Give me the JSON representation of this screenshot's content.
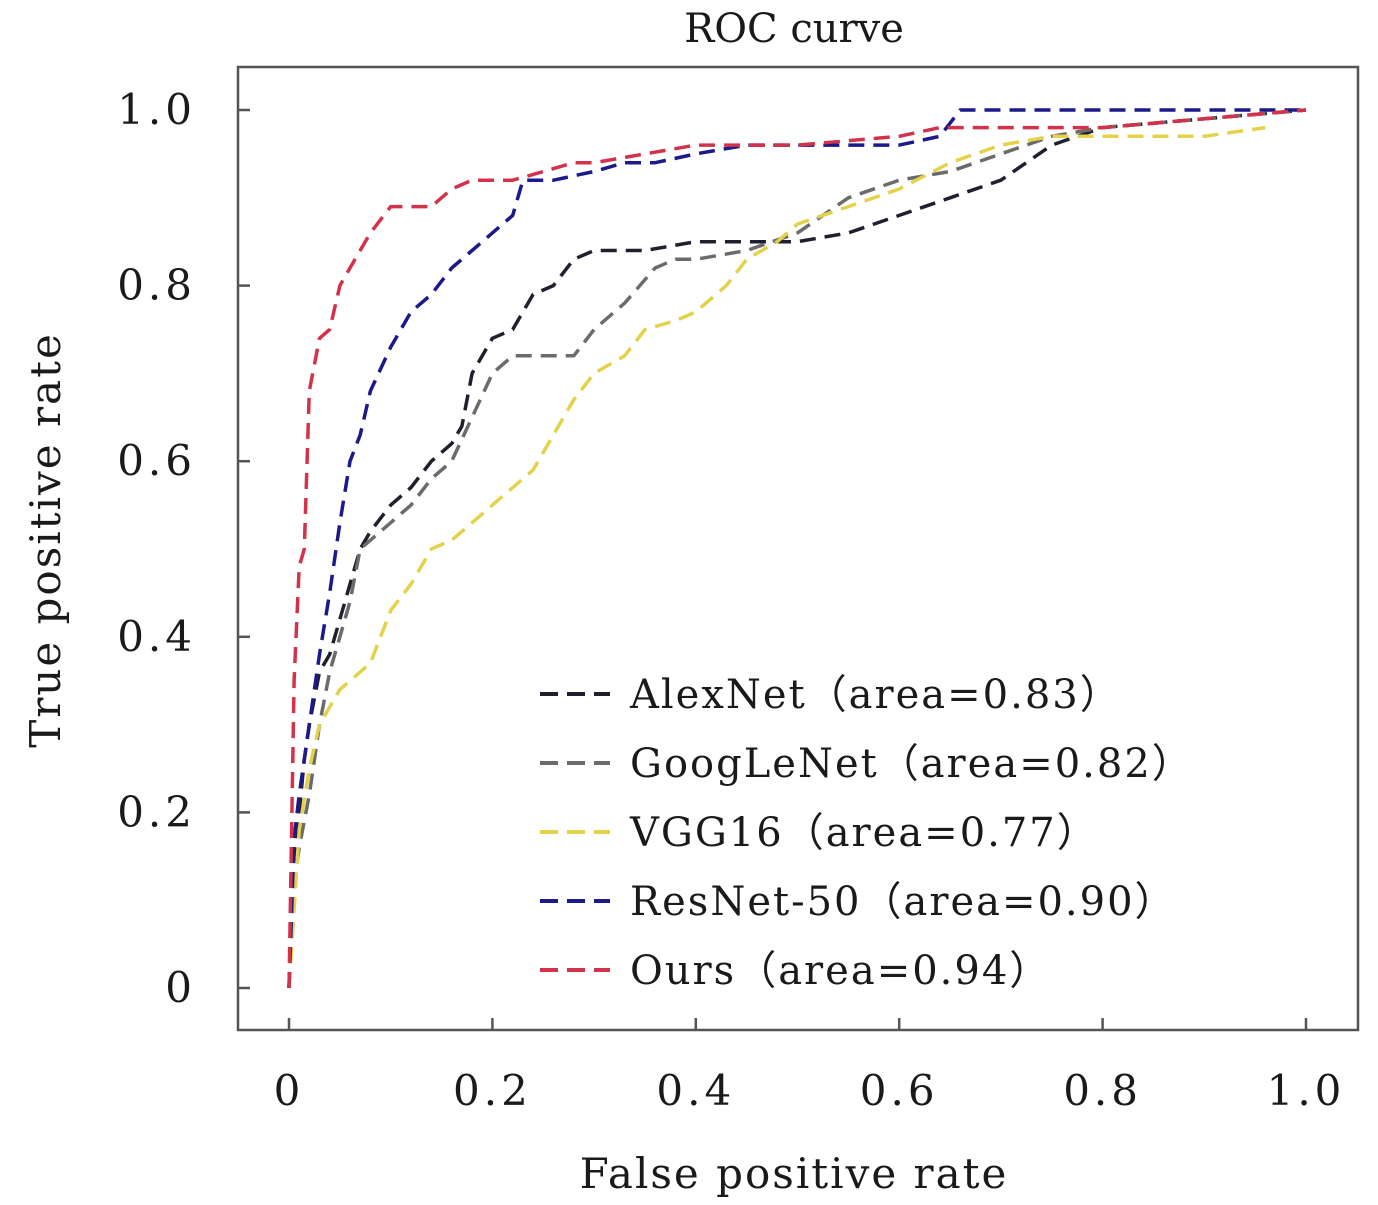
{
  "chart_data": {
    "type": "line",
    "title": "ROC curve",
    "xlabel": "False positive rate",
    "ylabel": "True positive rate",
    "xlim": [
      0,
      1
    ],
    "ylim": [
      0,
      1
    ],
    "xticks": [
      0,
      0.2,
      0.4,
      0.6,
      0.8,
      1.0
    ],
    "yticks": [
      0,
      0.2,
      0.4,
      0.6,
      0.8,
      1.0
    ],
    "xtick_labels": [
      "0",
      "0.2",
      "0.4",
      "0.6",
      "0.8",
      "1.0"
    ],
    "ytick_labels": [
      "0",
      "0.2",
      "0.4",
      "0.6",
      "0.8",
      "1.0"
    ],
    "grid": false,
    "legend_position": "lower-right",
    "series": [
      {
        "name": "AlexNet（area=0.83）",
        "color": "#1f1f2e",
        "x": [
          0,
          0.005,
          0.01,
          0.015,
          0.02,
          0.03,
          0.04,
          0.05,
          0.06,
          0.07,
          0.08,
          0.1,
          0.12,
          0.14,
          0.16,
          0.17,
          0.18,
          0.2,
          0.22,
          0.24,
          0.26,
          0.28,
          0.3,
          0.35,
          0.4,
          0.45,
          0.5,
          0.55,
          0.6,
          0.65,
          0.7,
          0.75,
          0.8,
          0.9,
          1.0
        ],
        "y": [
          0,
          0.15,
          0.2,
          0.26,
          0.3,
          0.36,
          0.38,
          0.42,
          0.46,
          0.5,
          0.52,
          0.55,
          0.57,
          0.6,
          0.62,
          0.64,
          0.7,
          0.74,
          0.75,
          0.79,
          0.8,
          0.83,
          0.84,
          0.84,
          0.85,
          0.85,
          0.85,
          0.86,
          0.88,
          0.9,
          0.92,
          0.96,
          0.98,
          0.99,
          1.0
        ]
      },
      {
        "name": "GoogLeNet（area=0.82）",
        "color": "#6b6b6b",
        "x": [
          0,
          0.005,
          0.01,
          0.02,
          0.03,
          0.04,
          0.05,
          0.06,
          0.07,
          0.08,
          0.1,
          0.12,
          0.14,
          0.16,
          0.18,
          0.2,
          0.22,
          0.25,
          0.28,
          0.3,
          0.33,
          0.36,
          0.38,
          0.4,
          0.45,
          0.5,
          0.55,
          0.6,
          0.65,
          0.7,
          0.75,
          0.8,
          0.9,
          1.0
        ],
        "y": [
          0,
          0.12,
          0.16,
          0.22,
          0.3,
          0.36,
          0.4,
          0.44,
          0.5,
          0.51,
          0.53,
          0.55,
          0.58,
          0.6,
          0.65,
          0.7,
          0.72,
          0.72,
          0.72,
          0.75,
          0.78,
          0.82,
          0.83,
          0.83,
          0.84,
          0.86,
          0.9,
          0.92,
          0.93,
          0.95,
          0.97,
          0.98,
          0.99,
          1.0
        ]
      },
      {
        "name": "VGG16（area=0.77）",
        "color": "#e3d24a",
        "x": [
          0,
          0.01,
          0.02,
          0.03,
          0.05,
          0.08,
          0.1,
          0.12,
          0.14,
          0.16,
          0.18,
          0.2,
          0.24,
          0.26,
          0.28,
          0.3,
          0.33,
          0.35,
          0.38,
          0.4,
          0.43,
          0.45,
          0.48,
          0.5,
          0.55,
          0.6,
          0.65,
          0.7,
          0.75,
          0.8,
          0.85,
          0.9,
          0.96
        ],
        "y": [
          0,
          0.18,
          0.25,
          0.3,
          0.34,
          0.37,
          0.43,
          0.46,
          0.5,
          0.51,
          0.53,
          0.55,
          0.59,
          0.63,
          0.67,
          0.7,
          0.72,
          0.75,
          0.76,
          0.77,
          0.8,
          0.83,
          0.85,
          0.87,
          0.89,
          0.91,
          0.94,
          0.96,
          0.97,
          0.97,
          0.97,
          0.97,
          0.98
        ]
      },
      {
        "name": "ResNet-50（area=0.90）",
        "color": "#1c1a8a",
        "x": [
          0,
          0.005,
          0.01,
          0.02,
          0.03,
          0.04,
          0.05,
          0.06,
          0.07,
          0.08,
          0.1,
          0.12,
          0.14,
          0.16,
          0.18,
          0.2,
          0.22,
          0.23,
          0.26,
          0.3,
          0.33,
          0.36,
          0.4,
          0.45,
          0.5,
          0.55,
          0.6,
          0.64,
          0.66,
          0.7,
          0.8,
          1.0
        ],
        "y": [
          0,
          0.17,
          0.22,
          0.3,
          0.38,
          0.45,
          0.53,
          0.6,
          0.63,
          0.68,
          0.73,
          0.77,
          0.79,
          0.82,
          0.84,
          0.86,
          0.88,
          0.92,
          0.92,
          0.93,
          0.94,
          0.94,
          0.95,
          0.96,
          0.96,
          0.96,
          0.96,
          0.97,
          1.0,
          1.0,
          1.0,
          1.0
        ]
      },
      {
        "name": "Ours（area=0.94）",
        "color": "#d2334a",
        "x": [
          0,
          0.005,
          0.01,
          0.015,
          0.02,
          0.03,
          0.04,
          0.05,
          0.06,
          0.08,
          0.1,
          0.12,
          0.14,
          0.16,
          0.18,
          0.2,
          0.22,
          0.25,
          0.28,
          0.3,
          0.35,
          0.4,
          0.5,
          0.6,
          0.64,
          0.66,
          0.7,
          0.8,
          0.9,
          1.0
        ],
        "y": [
          0,
          0.35,
          0.48,
          0.5,
          0.68,
          0.74,
          0.75,
          0.8,
          0.82,
          0.86,
          0.89,
          0.89,
          0.89,
          0.91,
          0.92,
          0.92,
          0.92,
          0.93,
          0.94,
          0.94,
          0.95,
          0.96,
          0.96,
          0.97,
          0.98,
          0.98,
          0.98,
          0.98,
          0.99,
          1.0
        ]
      }
    ]
  }
}
